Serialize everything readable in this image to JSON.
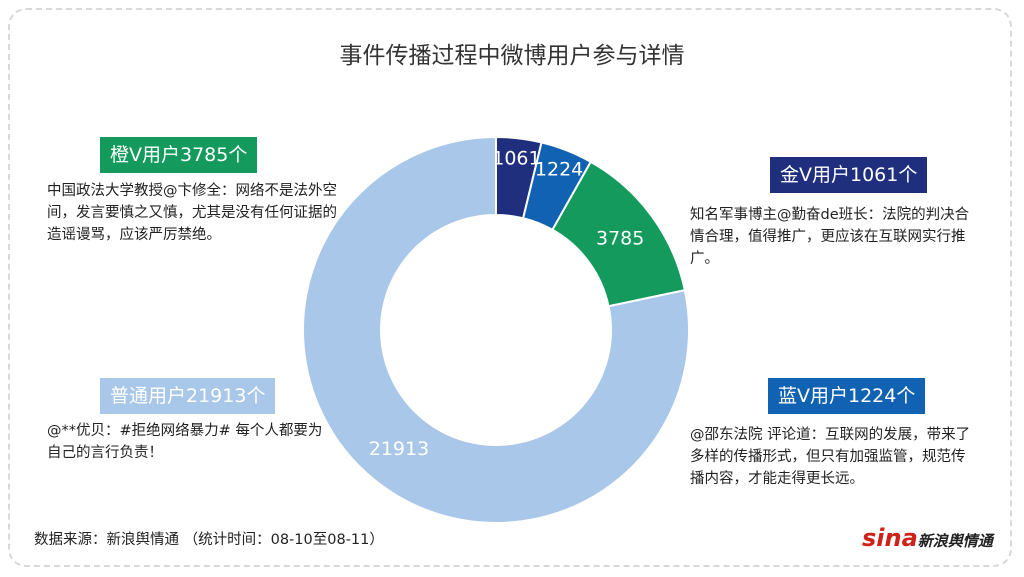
{
  "chart_data": {
    "type": "donut",
    "title": "事件传播过程中微博用户参与详情",
    "categories": [
      "金V用户1061个",
      "蓝V用户1224个",
      "橙V用户3785个",
      "普通用户21913个"
    ],
    "values": [
      1061,
      1224,
      3785,
      21913
    ],
    "colors": [
      "#1f2f7e",
      "#1262b3",
      "#139a5c",
      "#a9c7e9"
    ],
    "comments": [
      "知名军事博主@勤奋de班长：法院的判决合情合理，值得推广，更应该在互联网实行推广。",
      "@邵东法院 评论道：互联网的发展，带来了多样的传播形式，但只有加强监管，规范传播内容，才能走得更长远。",
      "中国政法大学教授@卞修全：网络不是法外空间，发言要慎之又慎，尤其是没有任何证据的造谣谩骂，应该严厉禁绝。",
      "@**优贝：#拒绝网络暴力# 每个人都要为自己的言行负责！"
    ],
    "source": "数据来源：新浪舆情通 （统计时间：08-10至08-11）",
    "logo": {
      "brand": "sina",
      "name": "新浪舆情通"
    }
  }
}
